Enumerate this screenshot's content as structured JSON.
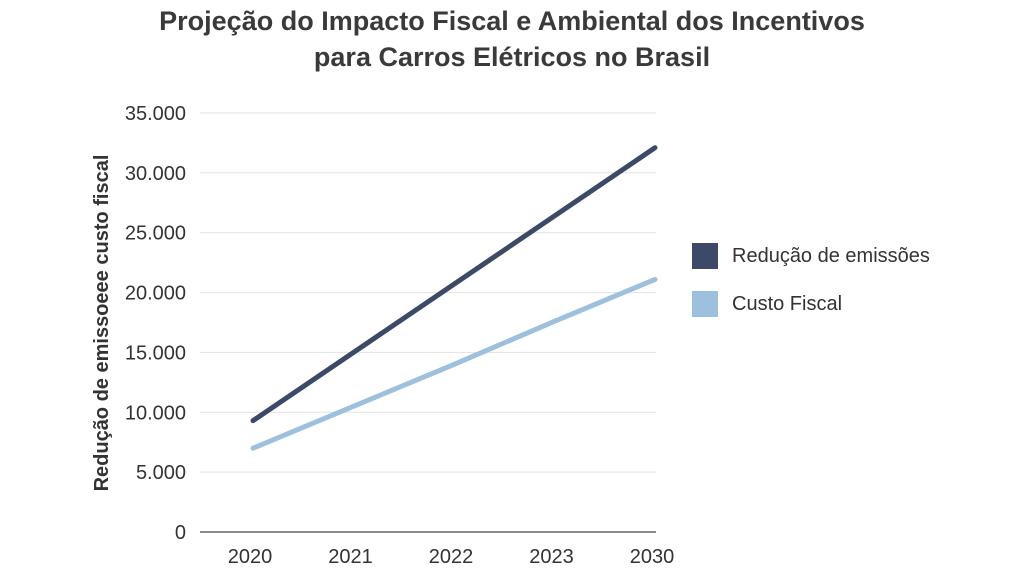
{
  "chart_data": {
    "type": "line",
    "title_line1": "Projeção do Impacto Fiscal e Ambiental dos Incentivos",
    "title_line2": "para Carros Elétricos no Brasil",
    "xlabel": "",
    "ylabel": "Redução de emissoeee custo fiscal",
    "categories": [
      "2020",
      "2021",
      "2022",
      "2023",
      "2030"
    ],
    "ylim": [
      0,
      35000
    ],
    "yticks": [
      0,
      5000,
      10000,
      15000,
      20000,
      25000,
      30000,
      35000
    ],
    "ytick_labels": [
      "0",
      "5.000",
      "10.000",
      "15.000",
      "20.000",
      "25.000",
      "30.000",
      "35.000"
    ],
    "grid": true,
    "legend_position": "right",
    "series": [
      {
        "name": "Redução de emissões",
        "color": "#3b4a66",
        "values": [
          9300,
          15000,
          20700,
          26400,
          32100
        ]
      },
      {
        "name": "Custo Fiscal",
        "color": "#9cc0dd",
        "values": [
          7000,
          10500,
          14000,
          17600,
          21100
        ]
      }
    ]
  }
}
